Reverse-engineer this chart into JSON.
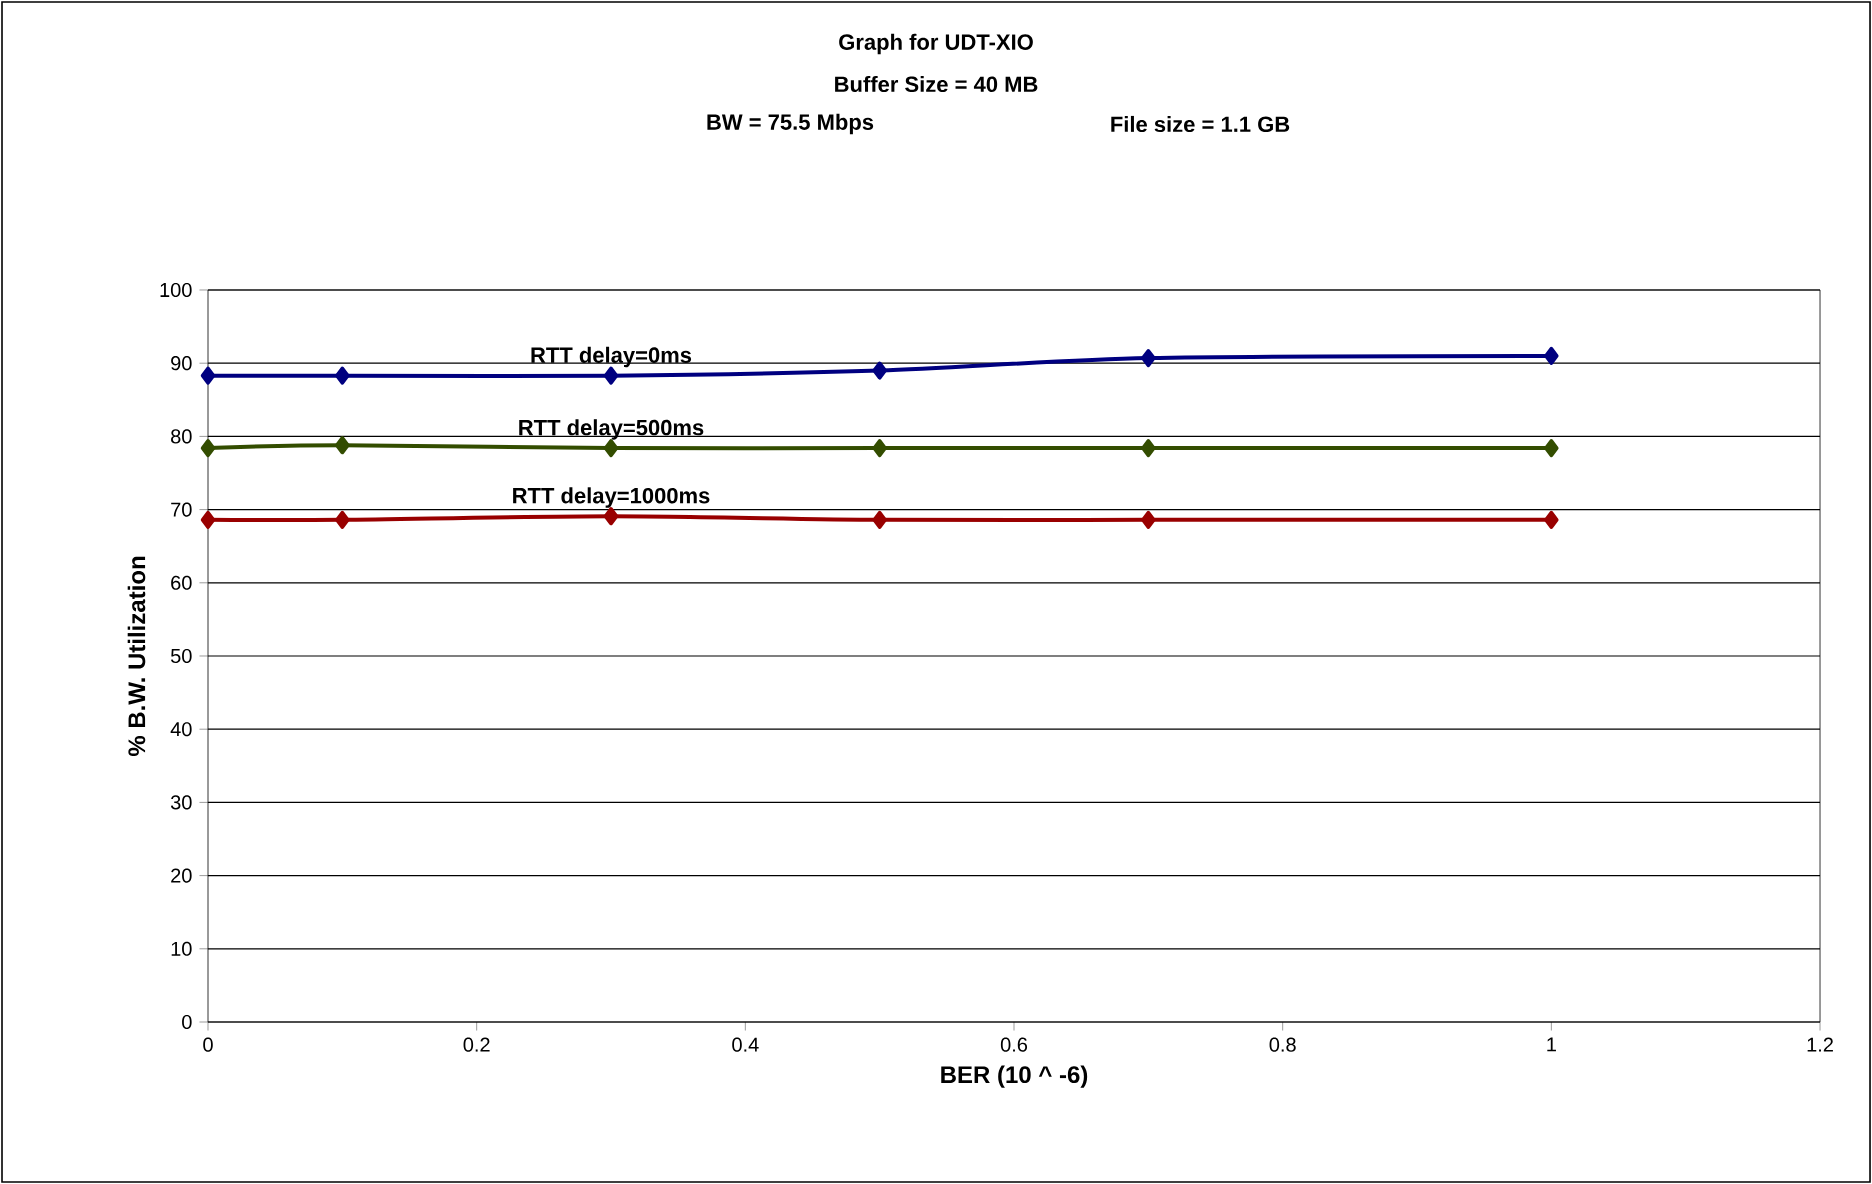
{
  "chart_data": {
    "type": "line",
    "title": "Graph for UDT-XIO",
    "subtitle": "Buffer Size = 40 MB",
    "annotations": [
      "BW = 75.5 Mbps",
      "File size = 1.1 GB"
    ],
    "xlabel": "BER (10 ^ -6)",
    "ylabel": "% B.W. Utilization",
    "x": [
      0,
      0.1,
      0.3,
      0.5,
      0.7,
      1
    ],
    "series": [
      {
        "name": "RTT delay=0ms",
        "color": "#000080",
        "values": [
          88.3,
          88.3,
          88.3,
          89,
          90.7,
          91
        ]
      },
      {
        "name": "RTT delay=500ms",
        "color": "#334d00",
        "values": [
          78.4,
          78.8,
          78.4,
          78.4,
          78.4,
          78.4
        ]
      },
      {
        "name": "RTT delay=1000ms",
        "color": "#990000",
        "values": [
          68.6,
          68.6,
          69.1,
          68.6,
          68.6,
          68.6
        ]
      }
    ],
    "xlim": [
      0,
      1.2
    ],
    "xticks": [
      0,
      0.2,
      0.4,
      0.6,
      0.8,
      1,
      1.2
    ],
    "ylim": [
      0,
      100
    ],
    "yticks": [
      0,
      10,
      20,
      30,
      40,
      50,
      60,
      70,
      80,
      90,
      100
    ],
    "grid": "y",
    "marker": "diamond",
    "line_style": "solid"
  }
}
